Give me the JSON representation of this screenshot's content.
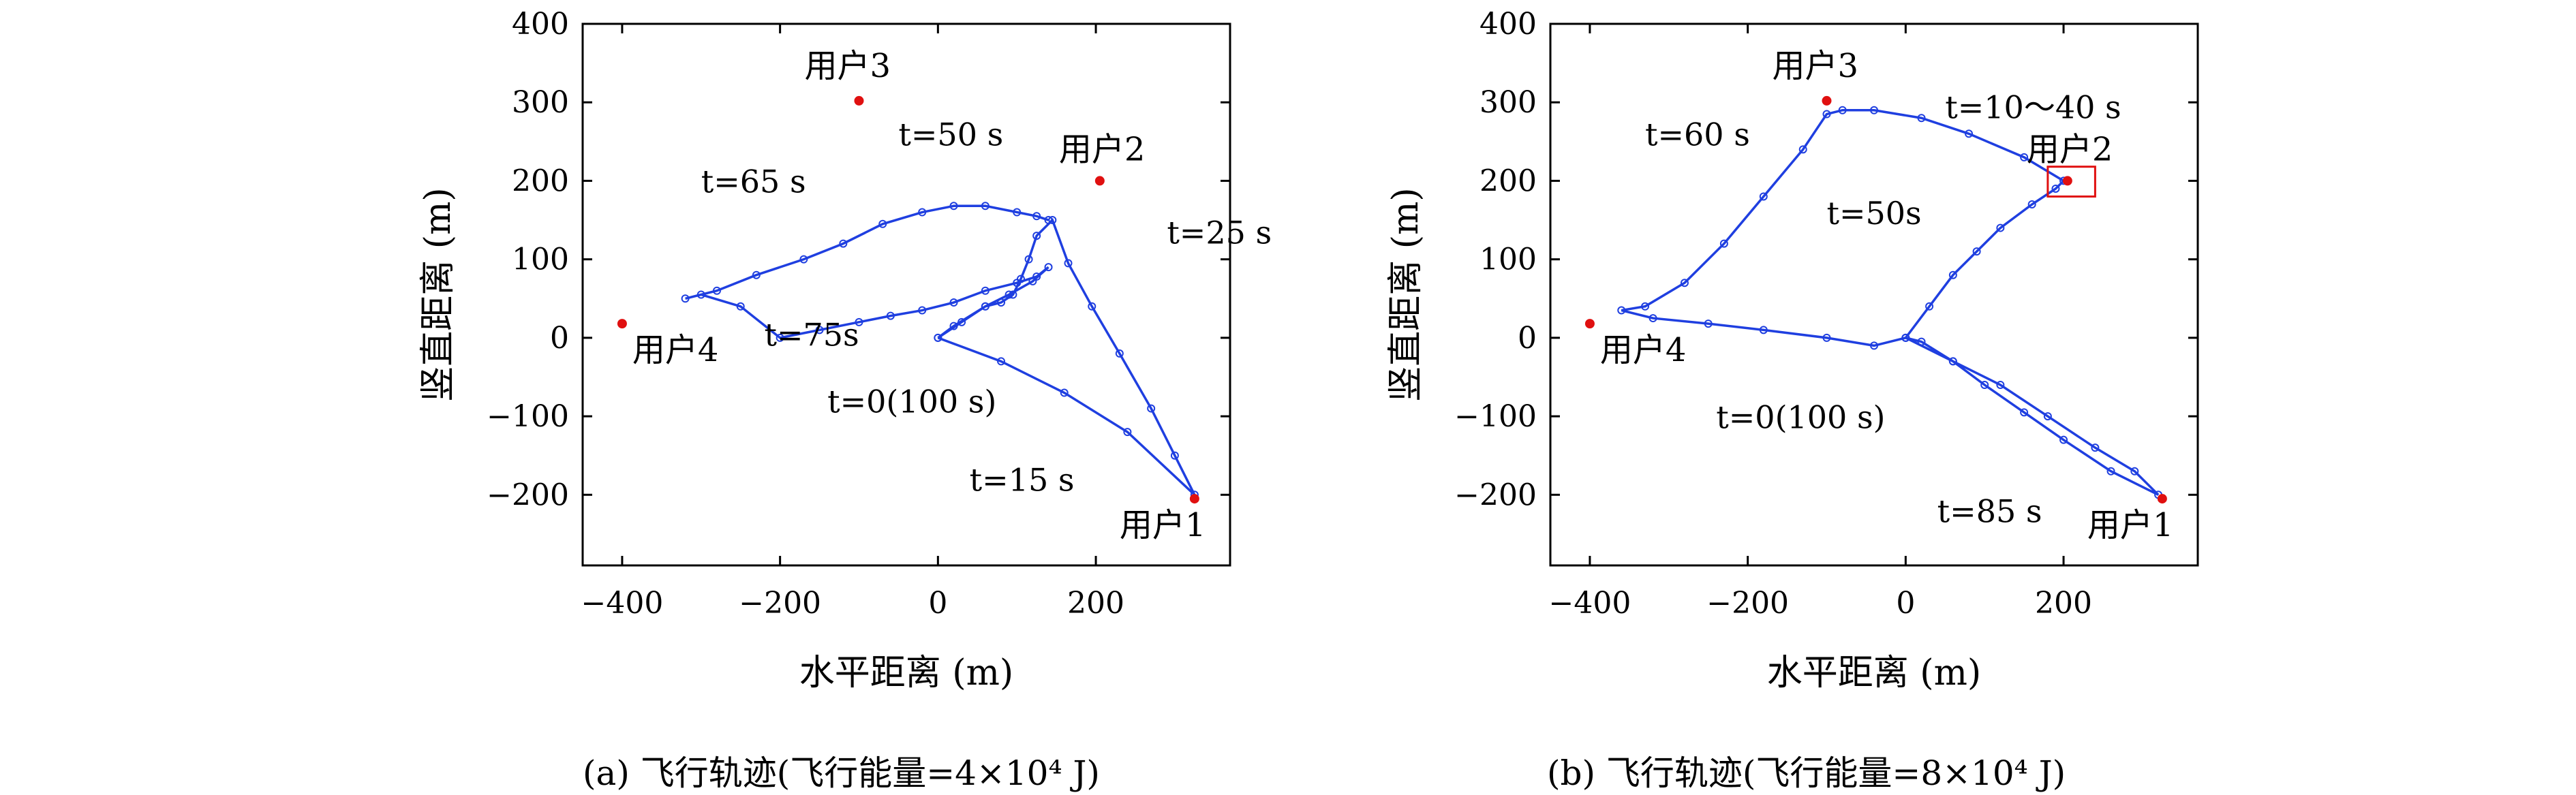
{
  "chart_data": [
    {
      "type": "scatter",
      "caption": "(a) 飞行轨迹(飞行能量=4×10⁴ J)",
      "xlabel": "水平距离 (m)",
      "ylabel": "竖直距离 (m)",
      "xlim": [
        -450,
        370
      ],
      "ylim": [
        -290,
        400
      ],
      "xticks": [
        -400,
        -200,
        0,
        200
      ],
      "yticks": [
        -200,
        -100,
        0,
        100,
        200,
        300,
        400
      ],
      "grid": false,
      "users": [
        {
          "name": "用户1",
          "x": 325,
          "y": -205
        },
        {
          "name": "用户2",
          "x": 205,
          "y": 200
        },
        {
          "name": "用户3",
          "x": -100,
          "y": 302
        },
        {
          "name": "用户4",
          "x": -400,
          "y": 18
        }
      ],
      "trajectory": {
        "color": "#1f3fe0",
        "x": [
          0,
          80,
          160,
          240,
          325,
          300,
          270,
          230,
          195,
          165,
          145,
          125,
          115,
          105,
          95,
          80,
          60,
          20,
          0,
          30,
          60,
          90,
          120,
          140,
          125,
          100,
          60,
          20,
          -20,
          -60,
          -100,
          -150,
          -200,
          -250,
          -300,
          -320,
          -280,
          -230,
          -170,
          -120,
          -70,
          -20,
          20,
          60,
          100,
          125,
          140
        ],
        "y": [
          0,
          -30,
          -70,
          -120,
          -200,
          -150,
          -90,
          -20,
          40,
          95,
          150,
          130,
          100,
          75,
          55,
          45,
          40,
          15,
          0,
          20,
          40,
          55,
          72,
          90,
          78,
          70,
          60,
          45,
          35,
          28,
          20,
          10,
          0,
          40,
          55,
          50,
          60,
          80,
          100,
          120,
          145,
          160,
          168,
          168,
          160,
          155,
          150
        ]
      },
      "annotations": [
        {
          "text": "t=50 s",
          "x": -50,
          "y": 245
        },
        {
          "text": "t=65 s",
          "x": -300,
          "y": 185
        },
        {
          "text": "t=25 s",
          "x": 290,
          "y": 120
        },
        {
          "text": "t=75s",
          "x": -220,
          "y": -10
        },
        {
          "text": "t=0(100 s)",
          "x": -140,
          "y": -95
        },
        {
          "text": "t=15 s",
          "x": 40,
          "y": -195
        }
      ]
    },
    {
      "type": "scatter",
      "caption": "(b) 飞行轨迹(飞行能量=8×10⁴ J)",
      "xlabel": "水平距离 (m)",
      "ylabel": "竖直距离 (m)",
      "xlim": [
        -450,
        370
      ],
      "ylim": [
        -290,
        400
      ],
      "xticks": [
        -400,
        -200,
        0,
        200
      ],
      "yticks": [
        -200,
        -100,
        0,
        100,
        200,
        300,
        400
      ],
      "grid": false,
      "users": [
        {
          "name": "用户1",
          "x": 325,
          "y": -205
        },
        {
          "name": "用户2",
          "x": 205,
          "y": 200
        },
        {
          "name": "用户3",
          "x": -100,
          "y": 302
        },
        {
          "name": "用户4",
          "x": -400,
          "y": 18
        }
      ],
      "trajectory": {
        "color": "#1f3fe0",
        "x": [
          0,
          60,
          120,
          180,
          240,
          290,
          320,
          260,
          200,
          150,
          100,
          60,
          20,
          0,
          30,
          60,
          90,
          120,
          160,
          190,
          200,
          150,
          80,
          20,
          -40,
          -80,
          -100,
          -130,
          -180,
          -230,
          -280,
          -330,
          -360,
          -320,
          -250,
          -180,
          -100,
          -40,
          0
        ],
        "y": [
          0,
          -30,
          -60,
          -100,
          -140,
          -170,
          -200,
          -170,
          -130,
          -95,
          -60,
          -30,
          -5,
          0,
          40,
          80,
          110,
          140,
          170,
          190,
          200,
          230,
          260,
          280,
          290,
          290,
          285,
          240,
          180,
          120,
          70,
          40,
          35,
          25,
          18,
          10,
          0,
          -10,
          0
        ]
      },
      "inset_box": {
        "x1": 180,
        "y1": 180,
        "x2": 240,
        "y2": 218
      },
      "annotations": [
        {
          "text": "t=10～40 s",
          "x": 50,
          "y": 280
        },
        {
          "text": "t=60 s",
          "x": -330,
          "y": 245
        },
        {
          "text": "t=50s",
          "x": -100,
          "y": 145
        },
        {
          "text": "t=0(100 s)",
          "x": -240,
          "y": -115
        },
        {
          "text": "t=85 s",
          "x": 40,
          "y": -235
        }
      ]
    }
  ]
}
